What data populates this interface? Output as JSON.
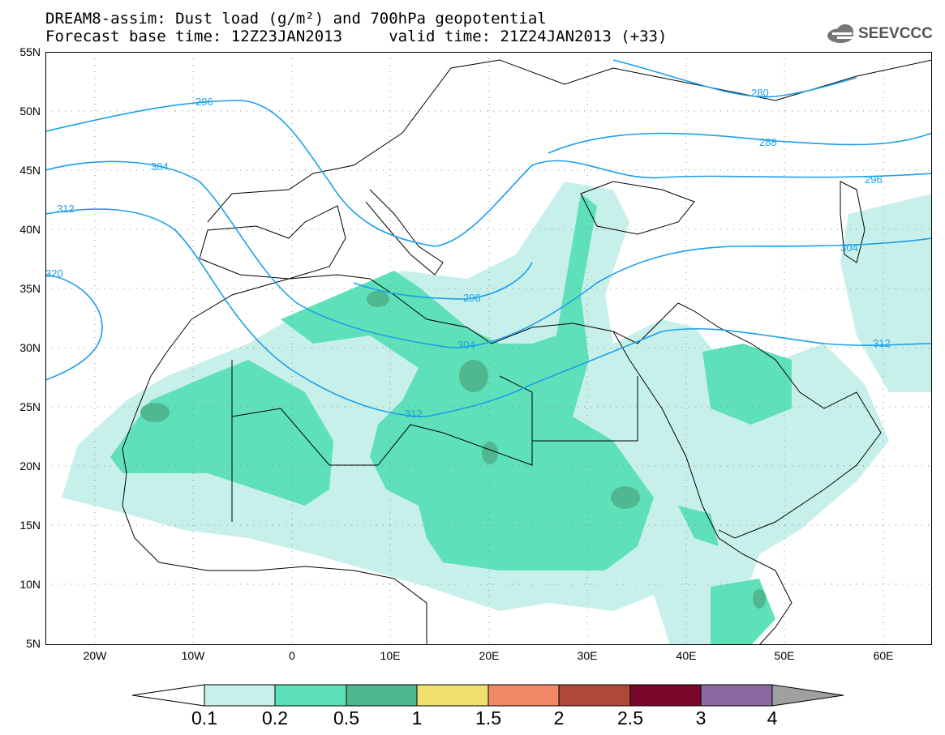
{
  "title_line1": "DREAM8-assim: Dust load (g/m²) and 700hPa geopotential",
  "title_line2": "Forecast base time: 12Z23JAN2013     valid time: 21Z24JAN2013 (+33)",
  "logo_text": "SEEVCCC",
  "logo_icon": "cloud-icon",
  "lat_labels": [
    "55N",
    "50N",
    "45N",
    "40N",
    "35N",
    "30N",
    "25N",
    "20N",
    "15N",
    "10N",
    "5N"
  ],
  "lon_labels": [
    "20W",
    "10W",
    "0",
    "10E",
    "20E",
    "30E",
    "40E",
    "50E",
    "60E"
  ],
  "contour_labels": [
    "280",
    "288",
    "296",
    "296",
    "296",
    "304",
    "304",
    "304",
    "312",
    "312",
    "312",
    "320"
  ],
  "colorbar": {
    "labels": [
      "0.1",
      "0.2",
      "0.5",
      "1",
      "1.5",
      "2",
      "2.5",
      "3",
      "4"
    ],
    "colors": [
      "#ffffff",
      "#c8f0ea",
      "#5ee0b8",
      "#50b890",
      "#f0e070",
      "#f08868",
      "#b04838",
      "#7a0828",
      "#8a6aa0",
      "#a0a0a0"
    ]
  },
  "colors": {
    "dust_low": "#c8f0ea",
    "dust_mid": "#5ee0b8",
    "dust_high": "#50b890",
    "contour": "#1ca0e8",
    "coast": "#000000"
  }
}
